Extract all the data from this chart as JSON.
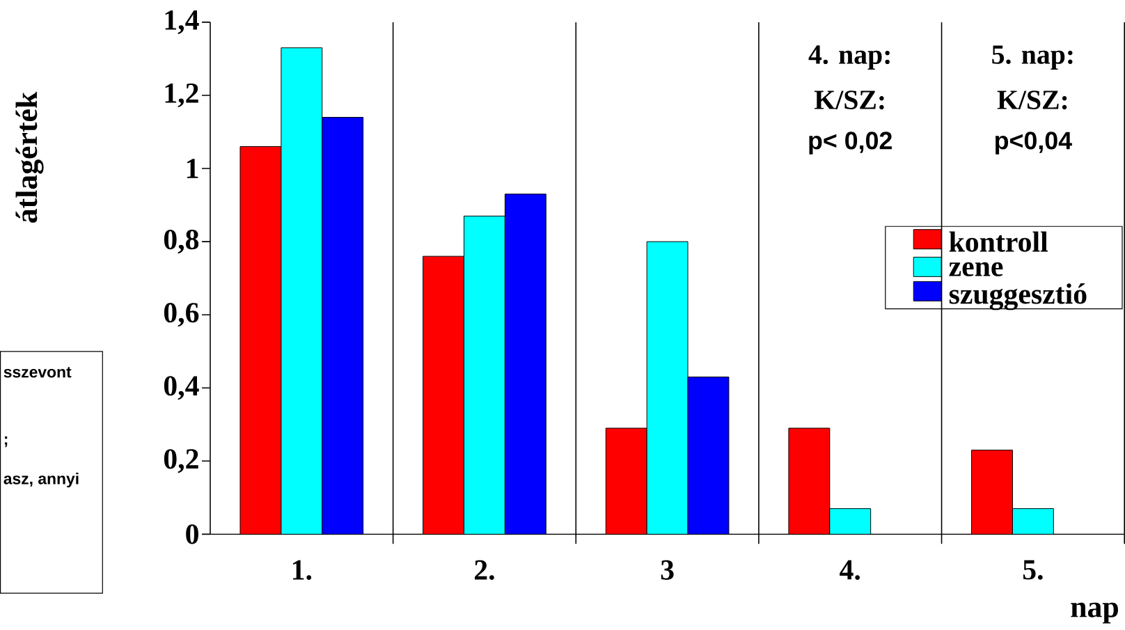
{
  "chart_data": {
    "type": "bar",
    "xlabel": "nap",
    "ylabel": "átlagérték",
    "categories": [
      "1.",
      "2.",
      "3",
      "4.",
      "5."
    ],
    "series": [
      {
        "name": "kontroll",
        "color": "#ff0000",
        "values": [
          1.06,
          0.76,
          0.29,
          0.29,
          0.23
        ]
      },
      {
        "name": "zene",
        "color": "#00ffff",
        "values": [
          1.33,
          0.87,
          0.8,
          0.07,
          0.07
        ]
      },
      {
        "name": "szuggesztió",
        "color": "#0000ff",
        "values": [
          1.14,
          0.93,
          0.43,
          null,
          null
        ]
      }
    ],
    "ylim": [
      0,
      1.4
    ],
    "yticks": [
      0,
      {
        "value": 0.2,
        "label": "0,2"
      },
      {
        "value": 0.4,
        "label": "0,4"
      },
      {
        "value": 0.6,
        "label": "0,6"
      },
      {
        "value": 0.8,
        "label": "0,8"
      },
      1,
      {
        "value": 1.2,
        "label": "1,2"
      },
      {
        "value": 1.4,
        "label": "1,4"
      }
    ],
    "grid": "x",
    "legend": "right",
    "annotations": [
      "4. nap:",
      "K/SZ:",
      "p< 0,02",
      "5. nap:",
      "K/SZ:",
      "p<0,04",
      "sszevont",
      ";",
      "asz, annyi"
    ]
  }
}
